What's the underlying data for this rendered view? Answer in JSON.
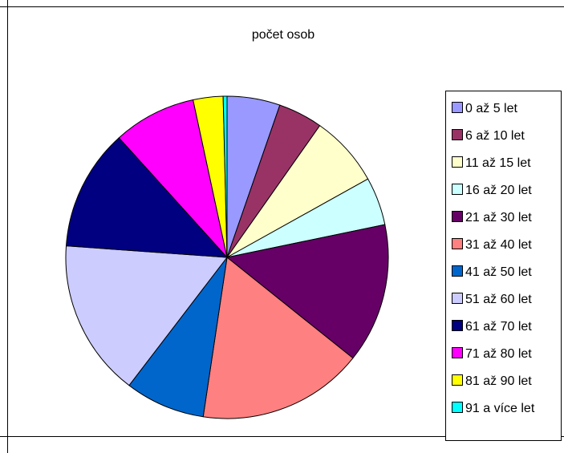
{
  "chart_data": {
    "type": "pie",
    "title": "počet osob",
    "legend_position": "right",
    "categories": [
      "0 až 5 let",
      "6 až 10 let",
      "11 až 15 let",
      "16 až 20 let",
      "21 až 30 let",
      "31 až 40 let",
      "41 až 50 let",
      "51 až 60 let",
      "61 až 70 let",
      "71 až 80 let",
      "81 až 90 let",
      "91 a více let"
    ],
    "values": [
      5.5,
      4.6,
      7.4,
      5.0,
      14.5,
      17.2,
      8.3,
      16.3,
      12.6,
      8.6,
      3.1,
      0.4
    ],
    "colors": [
      "#9999ff",
      "#993366",
      "#ffffcc",
      "#ccffff",
      "#660066",
      "#ff8080",
      "#0066cc",
      "#ccccff",
      "#000080",
      "#ff00ff",
      "#ffff00",
      "#00ffff"
    ],
    "start_angle_deg": 0,
    "direction": "clockwise"
  }
}
